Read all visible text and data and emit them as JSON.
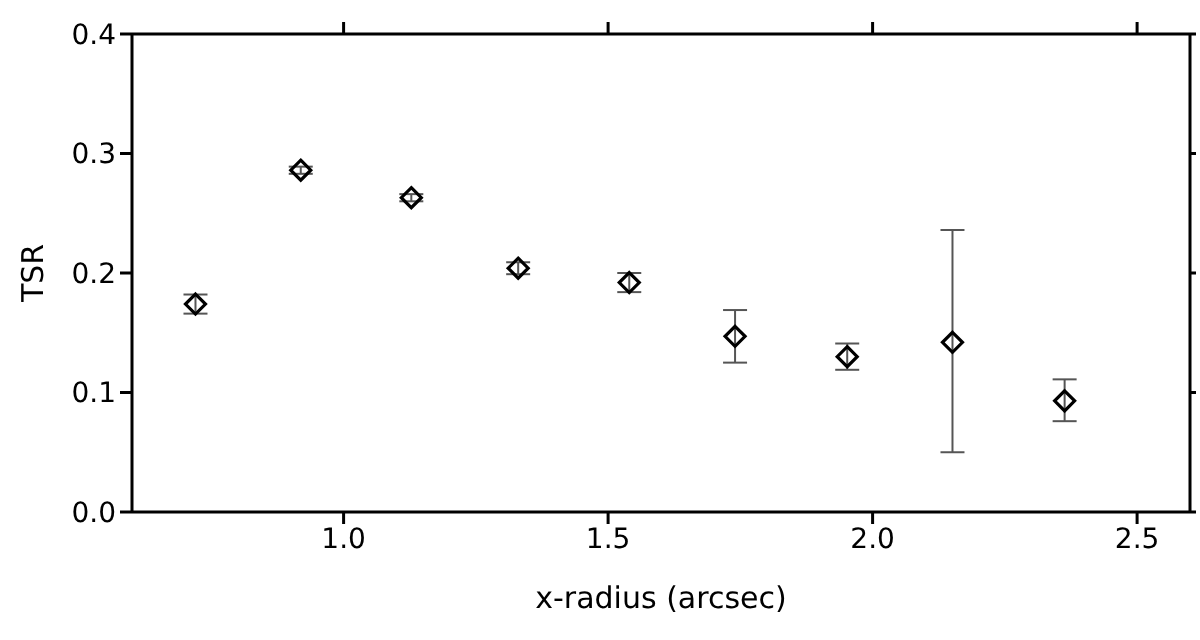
{
  "chart_data": {
    "type": "scatter",
    "xlabel": "x-radius (arcsec)",
    "ylabel": "TSR",
    "x": [
      0.72,
      0.919,
      1.128,
      1.33,
      1.54,
      1.74,
      1.952,
      2.151,
      2.363
    ],
    "series": [
      {
        "color": "#000000",
        "values": [
          0.174,
          0.286,
          0.263,
          0.204,
          0.192,
          0.147,
          0.13,
          0.142,
          0.093
        ],
        "errors": [
          0.008,
          0.003,
          0.003,
          0.005,
          0.008,
          0.022,
          0.011,
          [
            0.05,
            0.236
          ],
          [
            0.076,
            0.111
          ]
        ]
      }
    ],
    "xlim": [
      0.6,
      2.6
    ],
    "xticks": [
      {
        "value": 1,
        "label": "1.0"
      },
      1.5,
      {
        "value": 2,
        "label": "2.0"
      },
      2.5
    ],
    "ylim": [
      0,
      0.4
    ],
    "yticks": [
      {
        "value": 0,
        "label": "0.0"
      },
      0.1,
      0.2,
      0.3,
      0.4
    ],
    "marker": "diamond"
  }
}
